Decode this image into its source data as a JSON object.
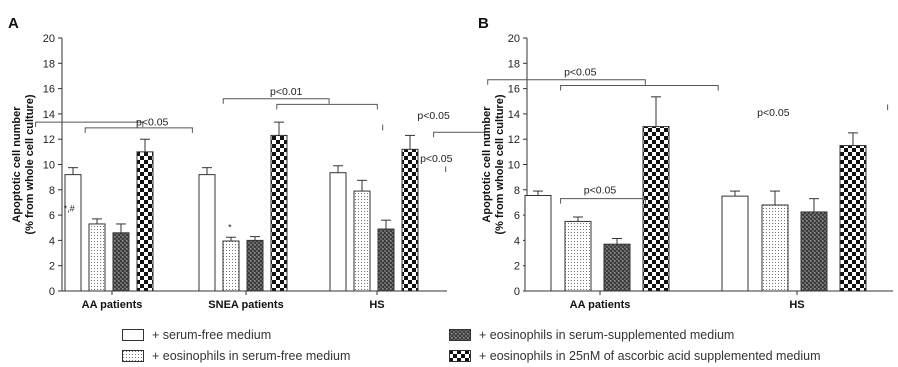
{
  "chart_data": [
    {
      "type": "bar",
      "panel_label": "A",
      "ylabel_line1": "Apoptotic cell number",
      "ylabel_line2": "(% from whole cell culture)",
      "ylim": [
        0,
        20
      ],
      "yticks": [
        0,
        2,
        4,
        6,
        8,
        10,
        12,
        14,
        16,
        18,
        20
      ],
      "categories": [
        "AA patients",
        "SNEA patients",
        "HS"
      ],
      "series": [
        {
          "values": [
            9.2,
            9.2,
            9.35
          ],
          "errors": [
            0.55,
            0.55,
            0.55
          ]
        },
        {
          "values": [
            5.3,
            3.95,
            7.9
          ],
          "errors": [
            0.4,
            0.3,
            0.85
          ]
        },
        {
          "values": [
            4.6,
            4.0,
            4.9
          ],
          "errors": [
            0.7,
            0.3,
            0.7
          ]
        },
        {
          "values": [
            11.0,
            12.3,
            11.2
          ],
          "errors": [
            1.0,
            1.05,
            1.1
          ]
        }
      ],
      "annotations": [
        {
          "text": "p<0.05",
          "x": 0.3,
          "y": 13.1
        },
        {
          "text": "*,#",
          "x": -0.32,
          "y": 6.3
        },
        {
          "text": "p<0.01",
          "x": 1.3,
          "y": 15.5
        },
        {
          "text": "*",
          "x": 0.88,
          "y": 4.8
        },
        {
          "text": "p<0.05",
          "x": 2.4,
          "y": 13.6
        },
        {
          "text": "p<0.05",
          "x": 2.42,
          "y": 10.2
        }
      ],
      "brackets": [
        {
          "x1": -0.57,
          "x2": 0.23,
          "y": 13.35
        },
        {
          "x1": -0.2,
          "x2": 0.6,
          "y": 12.9
        },
        {
          "x1": 0.83,
          "x2": 1.62,
          "y": 15.2
        },
        {
          "x1": 1.23,
          "x2": 1.98,
          "y": 14.75
        },
        {
          "x1": 2.4,
          "x2": 2.78,
          "y": 12.55
        }
      ],
      "tick_marks": [
        {
          "x": 2.02,
          "y0": 12.7,
          "y1": 13.15
        },
        {
          "x": 2.49,
          "y0": 9.4,
          "y1": 9.85
        }
      ]
    },
    {
      "type": "bar",
      "panel_label": "B",
      "ylabel_line1": "Apoptotic cell number",
      "ylabel_line2": "(% from whole cell culture)",
      "ylim": [
        0,
        20
      ],
      "yticks": [
        0,
        2,
        4,
        6,
        8,
        10,
        12,
        14,
        16,
        18,
        20
      ],
      "categories": [
        "AA patients",
        "HS"
      ],
      "series": [
        {
          "values": [
            7.55,
            7.5
          ],
          "errors": [
            0.35,
            0.4
          ]
        },
        {
          "values": [
            5.5,
            6.8
          ],
          "errors": [
            0.35,
            1.1
          ]
        },
        {
          "values": [
            3.7,
            6.25
          ],
          "errors": [
            0.45,
            1.05
          ]
        },
        {
          "values": [
            13.0,
            11.5
          ],
          "errors": [
            2.35,
            1.0
          ]
        }
      ],
      "annotations": [
        {
          "text": "p<0.05",
          "x": -0.1,
          "y": 17.05
        },
        {
          "text": "p<0.05",
          "x": 0.0,
          "y": 7.7
        },
        {
          "text": "p<0.05",
          "x": 0.88,
          "y": 13.85
        }
      ],
      "brackets": [
        {
          "x1": -0.57,
          "x2": 0.23,
          "y": 16.7
        },
        {
          "x1": -0.2,
          "x2": 0.6,
          "y": 16.25
        },
        {
          "x1": -0.2,
          "x2": 0.23,
          "y": 7.3
        }
      ],
      "tick_marks": [
        {
          "x": 1.46,
          "y0": 14.3,
          "y1": 14.75
        }
      ]
    }
  ],
  "legend": {
    "items": [
      {
        "label": "+ serum-free medium",
        "pattern": "empty"
      },
      {
        "label": "+ eosinophils in serum-free medium",
        "pattern": "dots"
      },
      {
        "label": "+ eosinophils in serum-supplemented medium",
        "pattern": "crosshatch"
      },
      {
        "label": "+ eosinophils in 25nM of ascorbic acid supplemented medium",
        "pattern": "checker"
      }
    ]
  }
}
